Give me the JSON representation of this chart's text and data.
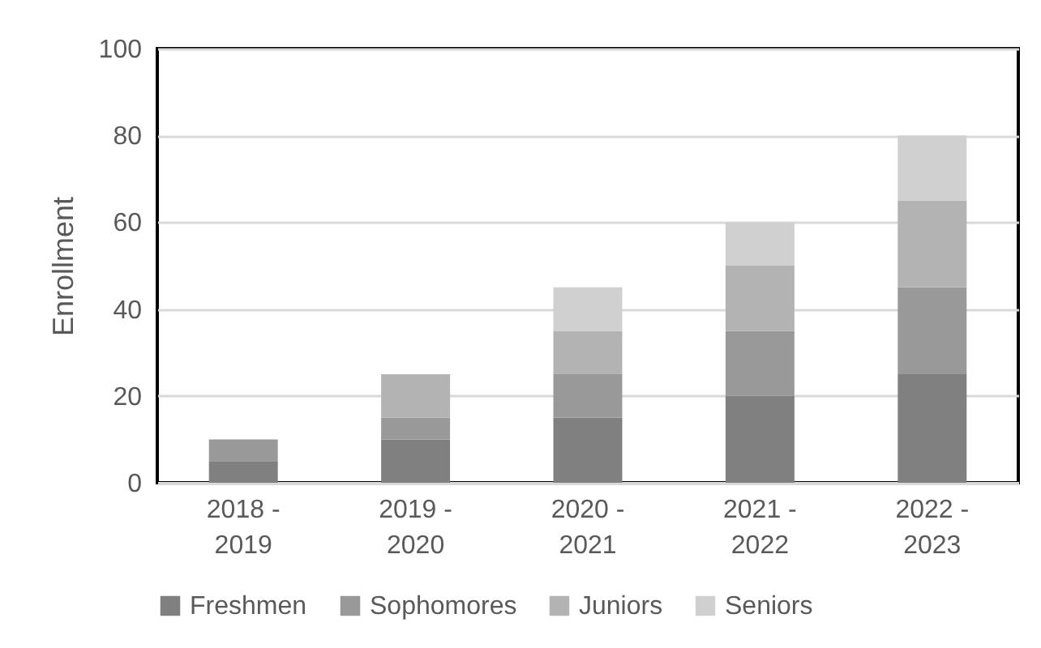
{
  "chart_data": {
    "type": "bar",
    "stacked": true,
    "ylabel": "Enrollment",
    "categories": [
      "2018 - 2019",
      "2019 - 2020",
      "2020 - 2021",
      "2021 - 2022",
      "2022 - 2023"
    ],
    "series": [
      {
        "name": "Freshmen",
        "color": "#808080",
        "values": [
          5,
          10,
          15,
          20,
          25
        ]
      },
      {
        "name": "Sophomores",
        "color": "#999999",
        "values": [
          5,
          5,
          10,
          15,
          20
        ]
      },
      {
        "name": "Juniors",
        "color": "#b3b3b3",
        "values": [
          0,
          10,
          10,
          15,
          20
        ]
      },
      {
        "name": "Seniors",
        "color": "#d0d0d0",
        "values": [
          0,
          0,
          10,
          10,
          15
        ]
      }
    ],
    "ylim": [
      0,
      100
    ],
    "yticks": [
      0,
      20,
      40,
      60,
      80,
      100
    ],
    "grid": "y",
    "legend": "bottom"
  }
}
